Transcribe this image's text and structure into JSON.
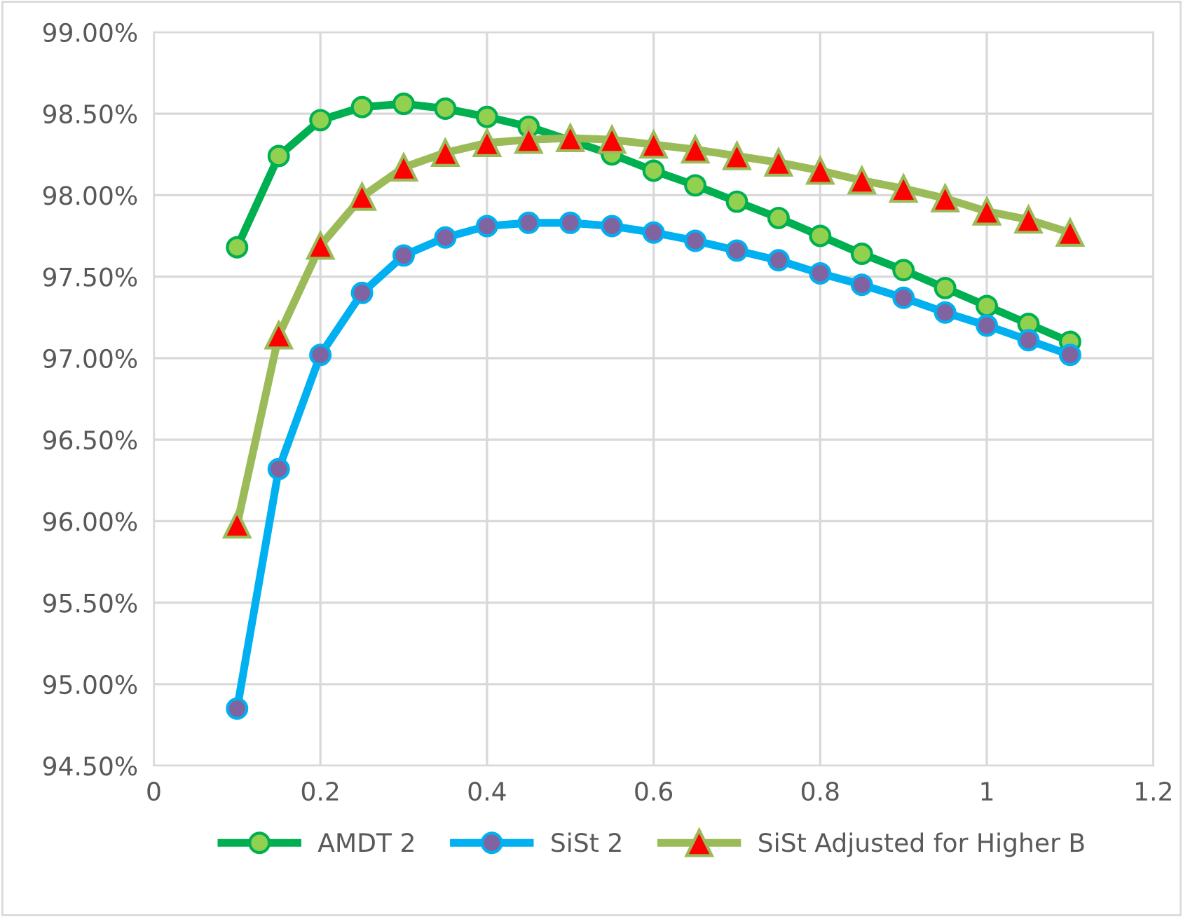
{
  "chart_data": {
    "type": "line",
    "grid": true,
    "legend": "bottom",
    "xlim": [
      0,
      1.2
    ],
    "xticks": [
      0,
      0.2,
      0.4,
      0.6,
      0.8,
      1,
      1.2
    ],
    "ylim": [
      94.5,
      99
    ],
    "yticks": [
      {
        "value": 94.5,
        "label": "94.50%"
      },
      {
        "value": 95,
        "label": "95.00%"
      },
      {
        "value": 95.5,
        "label": "95.50%"
      },
      {
        "value": 96,
        "label": "96.00%"
      },
      {
        "value": 96.5,
        "label": "96.50%"
      },
      {
        "value": 97,
        "label": "97.00%"
      },
      {
        "value": 97.5,
        "label": "97.50%"
      },
      {
        "value": 98,
        "label": "98.00%"
      },
      {
        "value": 98.5,
        "label": "98.50%"
      },
      {
        "value": 99,
        "label": "99.00%"
      }
    ],
    "x": [
      0.1,
      0.15,
      0.2,
      0.25,
      0.3,
      0.35,
      0.4,
      0.45,
      0.5,
      0.55,
      0.6,
      0.65,
      0.7,
      0.75,
      0.8,
      0.85,
      0.9,
      0.95,
      1.0,
      1.05,
      1.1
    ],
    "series": [
      {
        "name": "AMDT 2",
        "color": "#00b050",
        "marker": "circle",
        "values": [
          97.68,
          98.24,
          98.46,
          98.54,
          98.56,
          98.53,
          98.48,
          98.42,
          null,
          98.25,
          98.15,
          98.06,
          97.96,
          97.86,
          97.75,
          97.64,
          97.54,
          97.43,
          97.32,
          97.21,
          97.1
        ]
      },
      {
        "name": "SiSt 2",
        "color": "#00b0f0",
        "marker": "circle",
        "values": [
          94.85,
          96.32,
          97.02,
          97.4,
          97.63,
          97.74,
          97.81,
          97.83,
          97.83,
          97.81,
          97.77,
          97.72,
          97.66,
          97.6,
          97.52,
          97.45,
          97.37,
          97.28,
          97.2,
          97.11,
          97.02
        ]
      },
      {
        "name": "SiSt Adjusted for Higher B",
        "color": "#9bbb59",
        "marker": "triangle",
        "values": [
          95.98,
          97.14,
          97.69,
          97.99,
          98.17,
          98.26,
          98.32,
          98.34,
          98.35,
          98.34,
          98.31,
          98.28,
          98.24,
          98.2,
          98.15,
          98.09,
          98.04,
          97.98,
          97.9,
          97.85,
          97.77
        ]
      }
    ]
  }
}
